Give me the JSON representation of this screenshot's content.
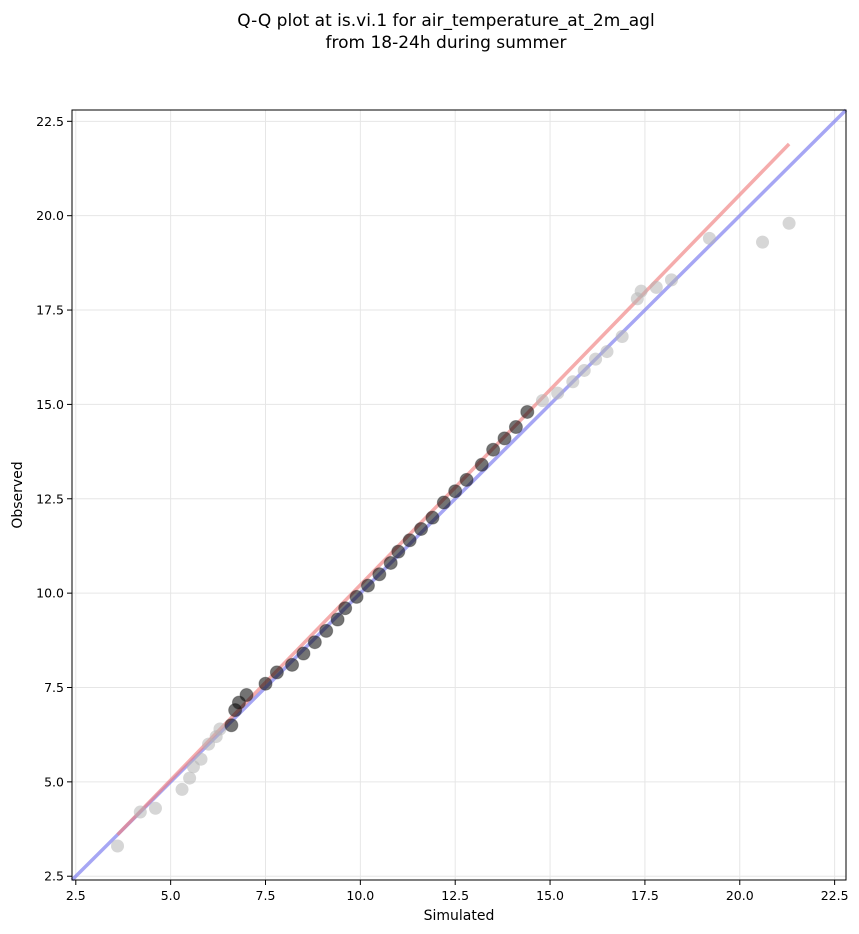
{
  "chart_data": {
    "type": "scatter",
    "title_lines": [
      "Q-Q plot at is.vi.1 for air_temperature_at_2m_agl",
      "from 18-24h during summer"
    ],
    "xlabel": "Simulated",
    "ylabel": "Observed",
    "xlim": [
      2.4,
      22.8
    ],
    "ylim": [
      2.4,
      22.8
    ],
    "xticks": [
      "2.5",
      "5.0",
      "7.5",
      "10.0",
      "12.5",
      "15.0",
      "17.5",
      "20.0",
      "22.5"
    ],
    "yticks": [
      "2.5",
      "5.0",
      "7.5",
      "10.0",
      "12.5",
      "15.0",
      "17.5",
      "20.0",
      "22.5"
    ],
    "grid": true,
    "colors": {
      "points": "#000000",
      "outlier_points": "#b4b4b4",
      "fit_line": "#f08080",
      "identity_line": "#8080f0"
    },
    "points": [
      [
        3.6,
        3.3
      ],
      [
        4.2,
        4.2
      ],
      [
        4.6,
        4.3
      ],
      [
        5.3,
        4.8
      ],
      [
        5.5,
        5.1
      ],
      [
        5.6,
        5.4
      ],
      [
        5.8,
        5.6
      ],
      [
        6.0,
        6.0
      ],
      [
        6.2,
        6.2
      ],
      [
        6.3,
        6.4
      ],
      [
        6.6,
        6.5
      ],
      [
        6.7,
        6.9
      ],
      [
        6.8,
        7.1
      ],
      [
        7.0,
        7.3
      ],
      [
        7.5,
        7.6
      ],
      [
        7.8,
        7.9
      ],
      [
        8.2,
        8.1
      ],
      [
        8.5,
        8.4
      ],
      [
        8.8,
        8.7
      ],
      [
        9.1,
        9.0
      ],
      [
        9.4,
        9.3
      ],
      [
        9.6,
        9.6
      ],
      [
        9.9,
        9.9
      ],
      [
        10.2,
        10.2
      ],
      [
        10.5,
        10.5
      ],
      [
        10.8,
        10.8
      ],
      [
        11.0,
        11.1
      ],
      [
        11.3,
        11.4
      ],
      [
        11.6,
        11.7
      ],
      [
        11.9,
        12.0
      ],
      [
        12.2,
        12.4
      ],
      [
        12.5,
        12.7
      ],
      [
        12.8,
        13.0
      ],
      [
        13.2,
        13.4
      ],
      [
        13.5,
        13.8
      ],
      [
        13.8,
        14.1
      ],
      [
        14.1,
        14.4
      ],
      [
        14.4,
        14.8
      ],
      [
        14.8,
        15.1
      ],
      [
        15.2,
        15.3
      ],
      [
        15.6,
        15.6
      ],
      [
        15.9,
        15.9
      ],
      [
        16.2,
        16.2
      ],
      [
        16.5,
        16.4
      ],
      [
        16.9,
        16.8
      ],
      [
        17.3,
        17.8
      ],
      [
        17.4,
        18.0
      ],
      [
        17.8,
        18.1
      ],
      [
        18.2,
        18.3
      ],
      [
        19.2,
        19.4
      ],
      [
        20.6,
        19.3
      ],
      [
        21.3,
        19.8
      ]
    ],
    "fit_line": [
      [
        3.6,
        3.6
      ],
      [
        21.3,
        21.9
      ]
    ],
    "identity_line": [
      [
        2.4,
        2.4
      ],
      [
        22.8,
        22.8
      ]
    ]
  }
}
